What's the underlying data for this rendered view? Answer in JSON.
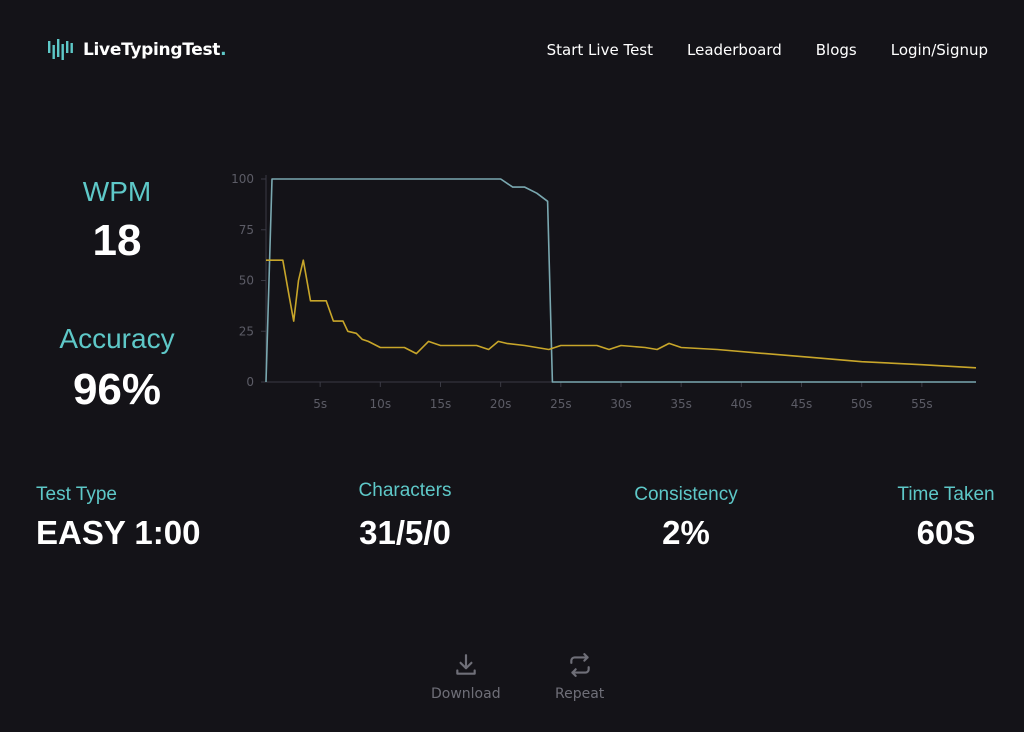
{
  "header": {
    "logo_text": "LiveTypingTest",
    "logo_dot": ".",
    "nav": [
      "Start Live Test",
      "Leaderboard",
      "Blogs",
      "Login/Signup"
    ]
  },
  "stats": {
    "wpm_label": "WPM",
    "wpm_value": "18",
    "accuracy_label": "Accuracy",
    "accuracy_value": "96%"
  },
  "summary": {
    "test_type_label": "Test Type",
    "test_type_value": "EASY 1:00",
    "characters_label": "Characters",
    "characters_value": "31/5/0",
    "consistency_label": "Consistency",
    "consistency_value": "2%",
    "time_label": "Time Taken",
    "time_value": "60S"
  },
  "actions": {
    "download_label": "Download",
    "repeat_label": "Repeat"
  },
  "colors": {
    "background": "#141318",
    "accent": "#5ec8c8",
    "wpm_line": "#c8a62a",
    "accuracy_line": "#7aa8b0",
    "axis": "#3a3a44"
  },
  "icons": [
    "logo-bars-icon",
    "download-icon",
    "repeat-icon"
  ],
  "chart_data": {
    "type": "line",
    "x_ticks": [
      5,
      10,
      15,
      20,
      25,
      30,
      35,
      40,
      45,
      50,
      55
    ],
    "x_tick_labels": [
      "5s",
      "10s",
      "15s",
      "20s",
      "25s",
      "30s",
      "35s",
      "40s",
      "45s",
      "50s",
      "55s"
    ],
    "y_ticks": [
      0,
      25,
      50,
      75,
      100
    ],
    "xlim": [
      0.5,
      59.5
    ],
    "ylim": [
      0,
      100
    ],
    "grid": false,
    "series": [
      {
        "color": "#7aa8b0",
        "points": [
          [
            0.5,
            0
          ],
          [
            1,
            100
          ],
          [
            20,
            100
          ],
          [
            21,
            96
          ],
          [
            22,
            96
          ],
          [
            23,
            93
          ],
          [
            23.9,
            89
          ],
          [
            24.3,
            0
          ],
          [
            59.5,
            0
          ]
        ]
      },
      {
        "color": "#c8a62a",
        "points": [
          [
            0.5,
            60
          ],
          [
            1.9,
            60
          ],
          [
            2.4,
            43
          ],
          [
            2.8,
            30
          ],
          [
            3.2,
            50
          ],
          [
            3.6,
            60
          ],
          [
            4.2,
            40
          ],
          [
            5.5,
            40
          ],
          [
            6.1,
            30
          ],
          [
            6.9,
            30
          ],
          [
            7.3,
            25
          ],
          [
            8,
            24
          ],
          [
            8.5,
            21
          ],
          [
            9,
            20
          ],
          [
            10,
            17
          ],
          [
            12,
            17
          ],
          [
            13,
            14
          ],
          [
            14,
            20
          ],
          [
            15,
            18
          ],
          [
            18,
            18
          ],
          [
            19,
            16
          ],
          [
            19.8,
            20
          ],
          [
            20.5,
            19
          ],
          [
            22,
            18
          ],
          [
            24,
            16
          ],
          [
            25,
            18
          ],
          [
            28,
            18
          ],
          [
            29,
            16
          ],
          [
            30,
            18
          ],
          [
            32,
            17
          ],
          [
            33,
            16
          ],
          [
            34,
            19
          ],
          [
            35,
            17
          ],
          [
            38,
            16
          ],
          [
            42,
            14
          ],
          [
            46,
            12
          ],
          [
            50,
            10
          ],
          [
            55,
            8.5
          ],
          [
            59.5,
            7
          ]
        ]
      }
    ]
  }
}
